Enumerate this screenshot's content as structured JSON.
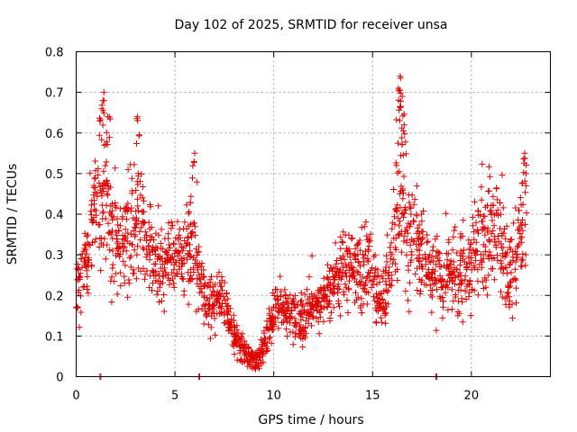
{
  "chart_data": {
    "type": "scatter",
    "title": "Day 102 of 2025, SRMTID for receiver unsa",
    "xlabel": "GPS time / hours",
    "ylabel": "SRMTID / TECUs",
    "xlim": [
      0,
      24
    ],
    "ylim": [
      0,
      0.8
    ],
    "x_ticks": [
      0,
      5,
      10,
      15,
      20
    ],
    "y_ticks": [
      0,
      0.1,
      0.2,
      0.3,
      0.4,
      0.5,
      0.6,
      0.7,
      0.8
    ],
    "x_tick_labels": [
      "0",
      "5",
      "10",
      "15",
      "20"
    ],
    "y_tick_labels": [
      "0",
      "0.1",
      "0.2",
      "0.3",
      "0.4",
      "0.5",
      "0.6",
      "0.7",
      "0.8"
    ],
    "grid": true,
    "marker": "plus",
    "color": "#e00000",
    "series": [
      {
        "name": "SRMTID",
        "trend": [
          [
            0.0,
            0.2,
            0.06
          ],
          [
            0.3,
            0.26,
            0.07
          ],
          [
            0.6,
            0.3,
            0.08
          ],
          [
            0.9,
            0.36,
            0.09
          ],
          [
            1.2,
            0.42,
            0.11
          ],
          [
            1.5,
            0.44,
            0.12
          ],
          [
            1.8,
            0.36,
            0.09
          ],
          [
            2.1,
            0.3,
            0.07
          ],
          [
            2.4,
            0.32,
            0.08
          ],
          [
            2.7,
            0.36,
            0.1
          ],
          [
            3.0,
            0.38,
            0.1
          ],
          [
            3.3,
            0.4,
            0.09
          ],
          [
            3.6,
            0.34,
            0.08
          ],
          [
            3.9,
            0.3,
            0.07
          ],
          [
            4.2,
            0.28,
            0.06
          ],
          [
            4.5,
            0.27,
            0.06
          ],
          [
            4.8,
            0.28,
            0.06
          ],
          [
            5.1,
            0.29,
            0.06
          ],
          [
            5.4,
            0.3,
            0.07
          ],
          [
            5.7,
            0.33,
            0.08
          ],
          [
            6.0,
            0.3,
            0.07
          ],
          [
            6.3,
            0.24,
            0.06
          ],
          [
            6.6,
            0.19,
            0.05
          ],
          [
            6.9,
            0.17,
            0.04
          ],
          [
            7.2,
            0.19,
            0.04
          ],
          [
            7.5,
            0.17,
            0.04
          ],
          [
            7.8,
            0.13,
            0.03
          ],
          [
            8.1,
            0.09,
            0.03
          ],
          [
            8.4,
            0.07,
            0.02
          ],
          [
            8.7,
            0.05,
            0.02
          ],
          [
            9.0,
            0.04,
            0.02
          ],
          [
            9.3,
            0.05,
            0.02
          ],
          [
            9.6,
            0.09,
            0.03
          ],
          [
            9.9,
            0.14,
            0.04
          ],
          [
            10.2,
            0.17,
            0.04
          ],
          [
            10.5,
            0.16,
            0.04
          ],
          [
            10.8,
            0.15,
            0.04
          ],
          [
            11.1,
            0.15,
            0.04
          ],
          [
            11.4,
            0.14,
            0.04
          ],
          [
            11.7,
            0.15,
            0.04
          ],
          [
            12.0,
            0.17,
            0.04
          ],
          [
            12.3,
            0.18,
            0.05
          ],
          [
            12.6,
            0.19,
            0.05
          ],
          [
            12.9,
            0.21,
            0.05
          ],
          [
            13.2,
            0.24,
            0.06
          ],
          [
            13.5,
            0.26,
            0.07
          ],
          [
            13.8,
            0.27,
            0.07
          ],
          [
            14.1,
            0.26,
            0.07
          ],
          [
            14.4,
            0.25,
            0.07
          ],
          [
            14.7,
            0.28,
            0.08
          ],
          [
            15.0,
            0.24,
            0.06
          ],
          [
            15.3,
            0.2,
            0.05
          ],
          [
            15.6,
            0.2,
            0.05
          ],
          [
            15.9,
            0.26,
            0.07
          ],
          [
            16.2,
            0.38,
            0.11
          ],
          [
            16.5,
            0.45,
            0.12
          ],
          [
            16.8,
            0.36,
            0.1
          ],
          [
            17.1,
            0.34,
            0.08
          ],
          [
            17.4,
            0.31,
            0.07
          ],
          [
            17.7,
            0.28,
            0.07
          ],
          [
            18.0,
            0.25,
            0.06
          ],
          [
            18.3,
            0.24,
            0.06
          ],
          [
            18.6,
            0.23,
            0.06
          ],
          [
            18.9,
            0.25,
            0.06
          ],
          [
            19.2,
            0.24,
            0.06
          ],
          [
            19.5,
            0.23,
            0.06
          ],
          [
            19.8,
            0.24,
            0.06
          ],
          [
            20.1,
            0.28,
            0.07
          ],
          [
            20.4,
            0.31,
            0.08
          ],
          [
            20.7,
            0.33,
            0.08
          ],
          [
            21.0,
            0.34,
            0.08
          ],
          [
            21.3,
            0.33,
            0.08
          ],
          [
            21.6,
            0.3,
            0.07
          ],
          [
            21.9,
            0.24,
            0.07
          ],
          [
            22.2,
            0.27,
            0.07
          ],
          [
            22.5,
            0.36,
            0.08
          ],
          [
            22.8,
            0.4,
            0.09
          ]
        ],
        "peaks": [
          [
            1.3,
            0.66
          ],
          [
            1.4,
            0.7
          ],
          [
            1.6,
            0.64
          ],
          [
            3.1,
            0.64
          ],
          [
            6.0,
            0.55
          ],
          [
            16.3,
            0.71
          ],
          [
            16.4,
            0.74
          ],
          [
            16.5,
            0.69
          ],
          [
            16.6,
            0.62
          ],
          [
            22.7,
            0.55
          ]
        ],
        "zeros": [
          1.2,
          6.2,
          18.2
        ]
      }
    ]
  }
}
